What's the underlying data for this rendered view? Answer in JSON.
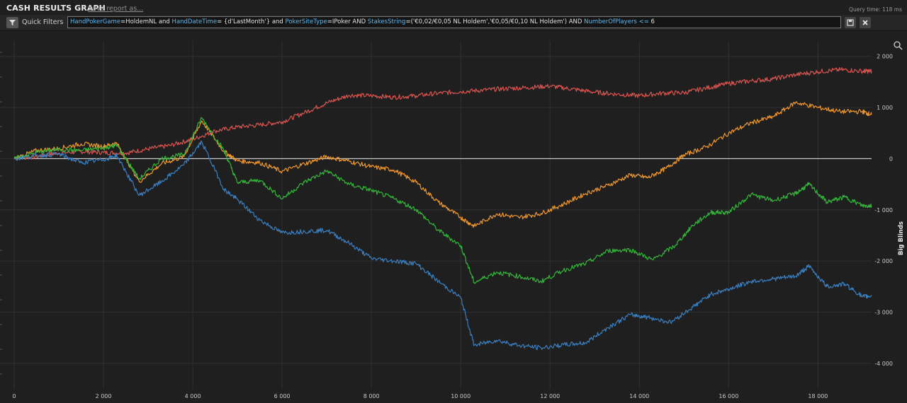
{
  "header": {
    "title": "CASH RESULTS GRAPH",
    "save_link": "Save report as...",
    "query_time": "Query time: 118 ms"
  },
  "filter_bar": {
    "label": "Quick Filters",
    "query_parts": [
      {
        "t": "HandPokerGame",
        "k": true
      },
      {
        "t": "=HoldemNL and ",
        "k": false
      },
      {
        "t": "HandDateTime",
        "k": true
      },
      {
        "t": "= {d'LastMonth'} and ",
        "k": false
      },
      {
        "t": "PokerSiteType",
        "k": true
      },
      {
        "t": "=IPoker AND ",
        "k": false
      },
      {
        "t": "StakesString",
        "k": true
      },
      {
        "t": "=('€0,02/€0,05 NL Holdem','€0,05/€0,10 NL Holdem') AND ",
        "k": false
      },
      {
        "t": "NumberOfPlayers",
        "k": true
      },
      {
        "t": " <= ",
        "k": true
      },
      {
        "t": "6",
        "k": false
      }
    ],
    "icons": [
      "filter-icon",
      "save-icon",
      "close-icon"
    ]
  },
  "chart_data": {
    "type": "line",
    "ylabel": "Big Blinds",
    "xlim": [
      0,
      19200
    ],
    "ylim": [
      -4500,
      2300
    ],
    "x_ticks": [
      0,
      2000,
      4000,
      6000,
      8000,
      10000,
      12000,
      14000,
      16000,
      18000
    ],
    "x_tick_labels": [
      "0",
      "2 000",
      "4 000",
      "6 000",
      "8 000",
      "10 000",
      "12 000",
      "14 000",
      "16 000",
      "18 000"
    ],
    "y_ticks": [
      2000,
      1000,
      0,
      -1000,
      -2000,
      -3000,
      -4000
    ],
    "y_tick_labels": [
      "2 000",
      "1 000",
      "0",
      "-1 000",
      "-2 000",
      "-3 000",
      "-4 000"
    ],
    "grid": true,
    "zero_line": true,
    "legend": "none",
    "series": [
      {
        "color": "#d9534f",
        "points": [
          [
            0,
            0
          ],
          [
            500,
            40
          ],
          [
            1000,
            110
          ],
          [
            1500,
            140
          ],
          [
            2000,
            120
          ],
          [
            2500,
            110
          ],
          [
            3000,
            190
          ],
          [
            3500,
            260
          ],
          [
            4000,
            380
          ],
          [
            4500,
            540
          ],
          [
            5000,
            620
          ],
          [
            5500,
            660
          ],
          [
            6000,
            720
          ],
          [
            6500,
            900
          ],
          [
            7000,
            1090
          ],
          [
            7500,
            1240
          ],
          [
            8000,
            1230
          ],
          [
            8500,
            1200
          ],
          [
            9000,
            1230
          ],
          [
            9500,
            1280
          ],
          [
            10000,
            1310
          ],
          [
            10500,
            1340
          ],
          [
            11000,
            1370
          ],
          [
            11500,
            1390
          ],
          [
            12000,
            1420
          ],
          [
            12500,
            1360
          ],
          [
            13000,
            1300
          ],
          [
            13500,
            1260
          ],
          [
            14000,
            1230
          ],
          [
            14500,
            1280
          ],
          [
            15000,
            1290
          ],
          [
            15500,
            1380
          ],
          [
            16000,
            1470
          ],
          [
            16500,
            1520
          ],
          [
            17000,
            1560
          ],
          [
            17500,
            1640
          ],
          [
            18000,
            1700
          ],
          [
            18500,
            1740
          ],
          [
            19000,
            1710
          ],
          [
            19200,
            1710
          ]
        ]
      },
      {
        "color": "#f0962e",
        "points": [
          [
            0,
            0
          ],
          [
            500,
            160
          ],
          [
            1000,
            200
          ],
          [
            1500,
            290
          ],
          [
            2000,
            240
          ],
          [
            2300,
            300
          ],
          [
            2800,
            -450
          ],
          [
            3300,
            -100
          ],
          [
            3800,
            40
          ],
          [
            4200,
            740
          ],
          [
            4700,
            140
          ],
          [
            5000,
            -40
          ],
          [
            5500,
            -80
          ],
          [
            6000,
            -250
          ],
          [
            6500,
            -100
          ],
          [
            7000,
            40
          ],
          [
            7500,
            -50
          ],
          [
            8000,
            -160
          ],
          [
            8500,
            -220
          ],
          [
            9000,
            -460
          ],
          [
            9500,
            -850
          ],
          [
            10000,
            -1150
          ],
          [
            10300,
            -1320
          ],
          [
            10800,
            -1080
          ],
          [
            11300,
            -1150
          ],
          [
            11800,
            -1070
          ],
          [
            12300,
            -890
          ],
          [
            12800,
            -680
          ],
          [
            13300,
            -520
          ],
          [
            13800,
            -320
          ],
          [
            14200,
            -370
          ],
          [
            14600,
            -190
          ],
          [
            15000,
            70
          ],
          [
            15500,
            230
          ],
          [
            16000,
            500
          ],
          [
            16500,
            700
          ],
          [
            17000,
            820
          ],
          [
            17500,
            1100
          ],
          [
            18000,
            1000
          ],
          [
            18500,
            920
          ],
          [
            19000,
            920
          ],
          [
            19200,
            860
          ]
        ]
      },
      {
        "color": "#34b53a",
        "points": [
          [
            0,
            0
          ],
          [
            500,
            120
          ],
          [
            1000,
            180
          ],
          [
            1500,
            160
          ],
          [
            2000,
            210
          ],
          [
            2300,
            260
          ],
          [
            2800,
            -400
          ],
          [
            3300,
            0
          ],
          [
            3800,
            80
          ],
          [
            4200,
            800
          ],
          [
            4700,
            160
          ],
          [
            5000,
            -470
          ],
          [
            5500,
            -420
          ],
          [
            6000,
            -780
          ],
          [
            6500,
            -460
          ],
          [
            7000,
            -240
          ],
          [
            7500,
            -500
          ],
          [
            8000,
            -620
          ],
          [
            8500,
            -780
          ],
          [
            9000,
            -990
          ],
          [
            9500,
            -1400
          ],
          [
            10000,
            -1700
          ],
          [
            10300,
            -2420
          ],
          [
            10800,
            -2220
          ],
          [
            11300,
            -2300
          ],
          [
            11800,
            -2400
          ],
          [
            12300,
            -2180
          ],
          [
            12800,
            -2050
          ],
          [
            13300,
            -1800
          ],
          [
            13800,
            -1780
          ],
          [
            14300,
            -1980
          ],
          [
            14800,
            -1700
          ],
          [
            15200,
            -1300
          ],
          [
            15600,
            -1050
          ],
          [
            16000,
            -1050
          ],
          [
            16500,
            -700
          ],
          [
            17000,
            -820
          ],
          [
            17500,
            -680
          ],
          [
            17800,
            -500
          ],
          [
            18200,
            -850
          ],
          [
            18600,
            -750
          ],
          [
            19000,
            -920
          ],
          [
            19200,
            -920
          ]
        ]
      },
      {
        "color": "#3a7fc1",
        "points": [
          [
            0,
            0
          ],
          [
            500,
            60
          ],
          [
            1000,
            90
          ],
          [
            1500,
            -80
          ],
          [
            2000,
            -20
          ],
          [
            2300,
            60
          ],
          [
            2800,
            -720
          ],
          [
            3300,
            -450
          ],
          [
            3800,
            -120
          ],
          [
            4200,
            330
          ],
          [
            4700,
            -600
          ],
          [
            5000,
            -800
          ],
          [
            5500,
            -1200
          ],
          [
            6000,
            -1450
          ],
          [
            6500,
            -1420
          ],
          [
            7000,
            -1400
          ],
          [
            7500,
            -1650
          ],
          [
            8000,
            -1950
          ],
          [
            8500,
            -2000
          ],
          [
            9000,
            -2050
          ],
          [
            9500,
            -2400
          ],
          [
            10000,
            -2720
          ],
          [
            10300,
            -3650
          ],
          [
            10800,
            -3550
          ],
          [
            11300,
            -3650
          ],
          [
            11800,
            -3700
          ],
          [
            12300,
            -3640
          ],
          [
            12800,
            -3600
          ],
          [
            13300,
            -3300
          ],
          [
            13800,
            -3050
          ],
          [
            14200,
            -3100
          ],
          [
            14700,
            -3200
          ],
          [
            15200,
            -2900
          ],
          [
            15600,
            -2650
          ],
          [
            16000,
            -2550
          ],
          [
            16500,
            -2400
          ],
          [
            17000,
            -2350
          ],
          [
            17500,
            -2300
          ],
          [
            17800,
            -2100
          ],
          [
            18200,
            -2500
          ],
          [
            18600,
            -2450
          ],
          [
            19000,
            -2700
          ],
          [
            19200,
            -2680
          ]
        ]
      }
    ]
  }
}
